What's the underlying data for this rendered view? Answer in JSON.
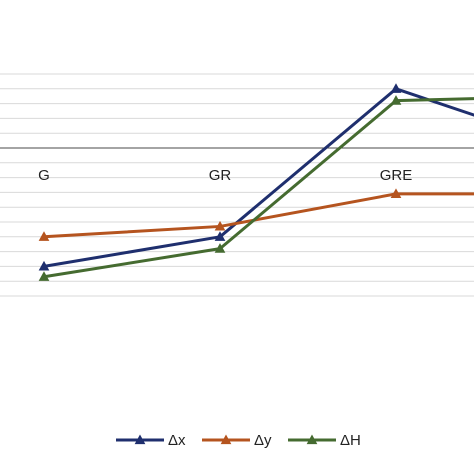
{
  "chart_data": {
    "type": "line",
    "categories": [
      "G",
      "GR",
      "GRE",
      ""
    ],
    "series": [
      {
        "name": "Δx",
        "color": "#1f2f6e",
        "values": [
          -0.8,
          -0.6,
          0.4,
          0.0
        ]
      },
      {
        "name": "Δy",
        "color": "#b5541f",
        "values": [
          -0.6,
          -0.53,
          -0.31,
          -0.31
        ]
      },
      {
        "name": "ΔH",
        "color": "#456b30",
        "values": [
          -0.87,
          -0.68,
          0.32,
          0.35
        ]
      }
    ],
    "ylim": [
      -1.0,
      0.5
    ],
    "grid": true,
    "legend_position": "bottom"
  }
}
